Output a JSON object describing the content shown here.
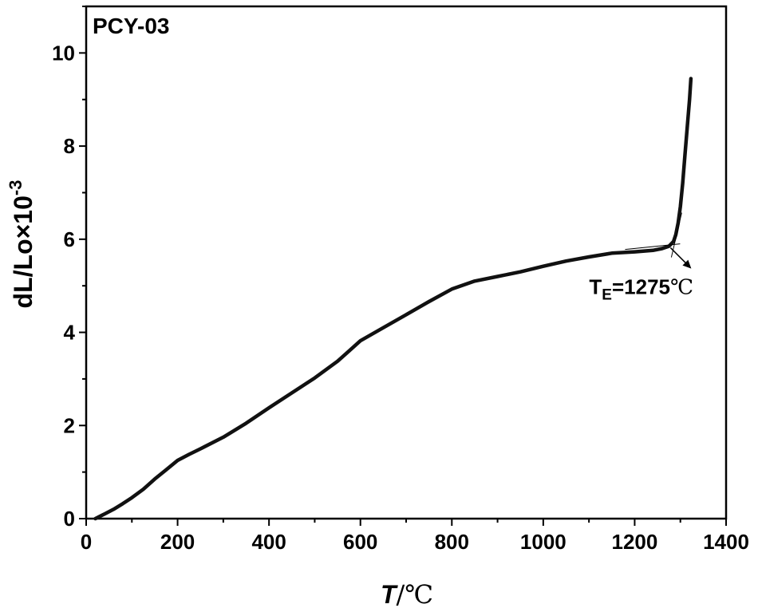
{
  "chart_data": {
    "type": "line",
    "panel_label": "PCY-03",
    "xlabel_var": "T",
    "xlabel_unit": "/℃",
    "ylabel_base": "dL/Lo×10",
    "ylabel_exp": "-3",
    "xlim": [
      0,
      1400
    ],
    "ylim": [
      0,
      11
    ],
    "xticks": [
      0,
      200,
      400,
      600,
      800,
      1000,
      1200,
      1400
    ],
    "yticks": [
      0,
      2,
      4,
      6,
      8,
      10
    ],
    "x_minor_step": 100,
    "y_minor_step": 1,
    "grid": false,
    "series": [
      {
        "color": "#111111",
        "x": [
          20,
          40,
          60,
          80,
          100,
          125,
          150,
          175,
          200,
          225,
          250,
          300,
          350,
          400,
          450,
          500,
          550,
          575,
          600,
          650,
          700,
          750,
          800,
          850,
          900,
          950,
          1000,
          1050,
          1100,
          1150,
          1200,
          1240,
          1260,
          1275,
          1285,
          1290,
          1295,
          1300,
          1305,
          1310,
          1315,
          1320,
          1323
        ],
        "y": [
          0.0,
          0.1,
          0.2,
          0.32,
          0.45,
          0.63,
          0.85,
          1.05,
          1.25,
          1.38,
          1.5,
          1.75,
          2.05,
          2.38,
          2.7,
          3.02,
          3.38,
          3.6,
          3.82,
          4.1,
          4.38,
          4.66,
          4.93,
          5.1,
          5.2,
          5.3,
          5.42,
          5.53,
          5.62,
          5.7,
          5.73,
          5.76,
          5.8,
          5.85,
          5.95,
          6.1,
          6.35,
          6.7,
          7.2,
          7.8,
          8.4,
          9.0,
          9.45
        ]
      }
    ],
    "annotation": {
      "base": "T",
      "subscript": "E",
      "value": "=1275",
      "unit": "℃",
      "point_x": 1275,
      "point_y": 5.85
    }
  }
}
